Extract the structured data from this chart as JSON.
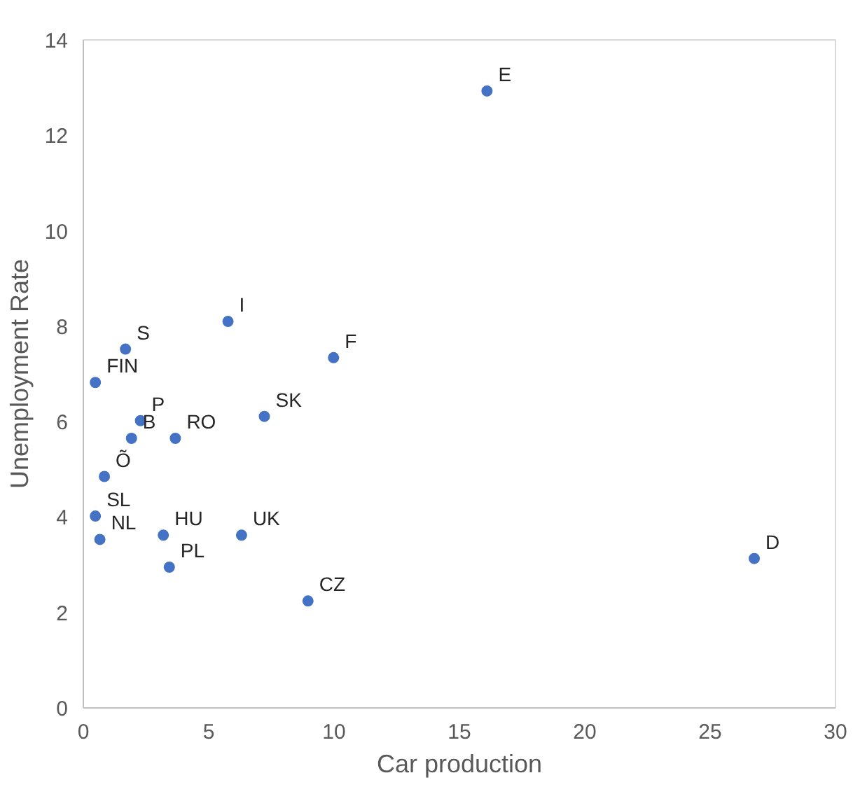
{
  "chart_data": {
    "type": "scatter",
    "xlabel": "Car production",
    "ylabel": "Unemployment Rate",
    "x": [
      16.1,
      26.76,
      5.77,
      1.68,
      9.98,
      0.48,
      2.28,
      7.22,
      1.92,
      3.67,
      0.84,
      0.48,
      3.19,
      6.31,
      0.66,
      3.43,
      8.96
    ],
    "values": [
      12.93,
      3.13,
      8.1,
      7.52,
      7.34,
      6.82,
      6.02,
      6.11,
      5.65,
      5.65,
      4.85,
      4.02,
      3.62,
      3.62,
      3.53,
      2.95,
      2.24
    ],
    "color": "#4472c4",
    "marker": "circle",
    "grid": false,
    "legend": false,
    "xlim": [
      0,
      30
    ],
    "xticks": [
      0,
      5,
      10,
      15,
      20,
      25,
      30
    ],
    "ylim": [
      0,
      14
    ],
    "yticks": [
      0,
      2,
      4,
      6,
      8,
      10,
      12,
      14
    ],
    "annotations": [
      {
        "text": "E",
        "x": 16.1,
        "y": 12.93
      },
      {
        "text": "D",
        "x": 26.76,
        "y": 3.13
      },
      {
        "text": "I",
        "x": 5.77,
        "y": 8.1
      },
      {
        "text": "S",
        "x": 1.68,
        "y": 7.52
      },
      {
        "text": "F",
        "x": 9.98,
        "y": 7.34
      },
      {
        "text": "FIN",
        "x": 0.48,
        "y": 6.82
      },
      {
        "text": "P",
        "x": 2.28,
        "y": 6.02
      },
      {
        "text": "SK",
        "x": 7.22,
        "y": 6.11
      },
      {
        "text": "B",
        "x": 1.92,
        "y": 5.65
      },
      {
        "text": "RO",
        "x": 3.67,
        "y": 5.65
      },
      {
        "text": "Õ",
        "x": 0.84,
        "y": 4.85
      },
      {
        "text": "SL",
        "x": 0.48,
        "y": 4.02
      },
      {
        "text": "HU",
        "x": 3.19,
        "y": 3.62
      },
      {
        "text": "UK",
        "x": 6.31,
        "y": 3.62
      },
      {
        "text": "NL",
        "x": 0.66,
        "y": 3.53
      },
      {
        "text": "PL",
        "x": 3.43,
        "y": 2.95
      },
      {
        "text": "CZ",
        "x": 8.96,
        "y": 2.24
      }
    ]
  }
}
